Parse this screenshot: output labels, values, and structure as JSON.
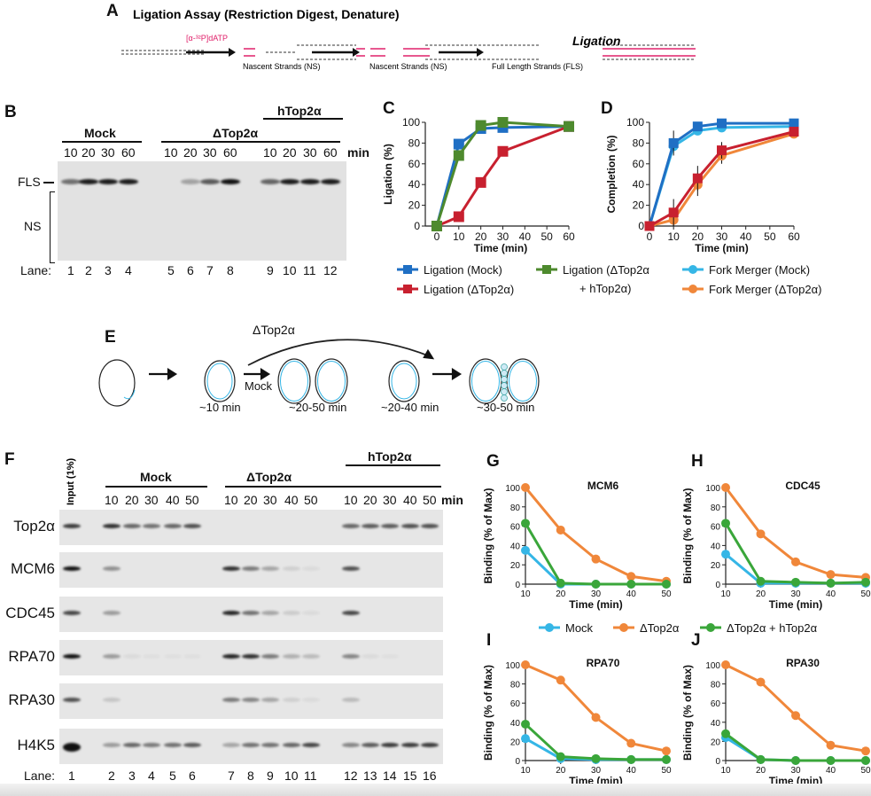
{
  "panelA": {
    "letter": "A",
    "title": "Ligation Assay (Restriction Digest, Denature)",
    "label_dATP": "[α-³²P]dATP",
    "ns1": "Nascent Strands (NS)",
    "ns2": "Nascent Strands (NS)",
    "ligation": "Ligation",
    "fls": "Full Length Strands (FLS)"
  },
  "panelB": {
    "letter": "B",
    "mock": "Mock",
    "dtop": "ΔTop2α",
    "htop": "hTop2α",
    "min": "min",
    "times": [
      "10",
      "20",
      "30",
      "60",
      "10",
      "20",
      "30",
      "60",
      "10",
      "20",
      "30",
      "60"
    ],
    "lanes": [
      "1",
      "2",
      "3",
      "4",
      "5",
      "6",
      "7",
      "8",
      "9",
      "10",
      "11",
      "12"
    ],
    "lane_label": "Lane:",
    "fls": "FLS",
    "ns": "NS",
    "fls_intensity": [
      0.55,
      0.95,
      0.95,
      0.95,
      0,
      0.3,
      0.65,
      1,
      0.6,
      0.95,
      0.95,
      0.95
    ]
  },
  "panelE": {
    "letter": "E",
    "dtop": "ΔTop2α",
    "mock": "Mock",
    "t1": "~10 min",
    "t2": "~20-50 min",
    "t3": "~20-40 min",
    "t4": "~30-50 min"
  },
  "panelF": {
    "letter": "F",
    "input": "Input (1%)",
    "mock": "Mock",
    "dtop": "ΔTop2α",
    "htop": "hTop2α",
    "min": "min",
    "times": [
      "10",
      "20",
      "30",
      "40",
      "50",
      "10",
      "20",
      "30",
      "40",
      "50",
      "10",
      "20",
      "30",
      "40",
      "50"
    ],
    "lanes": [
      "1",
      "2",
      "3",
      "4",
      "5",
      "6",
      "7",
      "8",
      "9",
      "10",
      "11",
      "12",
      "13",
      "14",
      "15",
      "16"
    ],
    "lane_label": "Lane:",
    "rows": [
      {
        "name": "Top2α",
        "intensity": [
          0.8,
          0.85,
          0.6,
          0.55,
          0.6,
          0.7,
          0,
          0,
          0,
          0,
          0,
          0.6,
          0.65,
          0.65,
          0.7,
          0.7
        ]
      },
      {
        "name": "MCM6",
        "intensity": [
          1,
          0.4,
          0,
          0,
          0,
          0,
          0.85,
          0.5,
          0.3,
          0.1,
          0.05,
          0.7,
          0,
          0,
          0,
          0
        ]
      },
      {
        "name": "CDC45",
        "intensity": [
          0.75,
          0.35,
          0,
          0,
          0,
          0,
          0.9,
          0.55,
          0.3,
          0.12,
          0.05,
          0.75,
          0,
          0,
          0,
          0
        ]
      },
      {
        "name": "RPA70",
        "intensity": [
          1,
          0.35,
          0.05,
          0.03,
          0.03,
          0.03,
          0.9,
          0.85,
          0.5,
          0.25,
          0.2,
          0.45,
          0.05,
          0.03,
          0,
          0
        ]
      },
      {
        "name": "RPA30",
        "intensity": [
          0.7,
          0.15,
          0,
          0,
          0,
          0,
          0.5,
          0.45,
          0.3,
          0.1,
          0.05,
          0.2,
          0,
          0,
          0,
          0
        ]
      },
      {
        "name": "H4K5",
        "intensity": [
          1,
          0.35,
          0.6,
          0.5,
          0.55,
          0.65,
          0.3,
          0.55,
          0.55,
          0.6,
          0.75,
          0.45,
          0.65,
          0.8,
          0.8,
          0.8
        ]
      }
    ]
  },
  "legendCD": [
    "Ligation (Mock)",
    "Ligation (ΔTop2α)",
    "Ligation (ΔTop2α",
    "+ hTop2α)",
    "Fork Merger (Mock)",
    "Fork Merger (ΔTop2α)"
  ],
  "legendGJ": [
    "Mock",
    "ΔTop2α",
    "ΔTop2α + hTop2α"
  ],
  "chart_data": [
    {
      "letter": "C",
      "type": "line",
      "title": "",
      "xlabel": "Time (min)",
      "ylabel": "Ligation (%)",
      "xlim": [
        -2,
        60
      ],
      "ylim": [
        0,
        100
      ],
      "xticks": [
        0,
        10,
        20,
        30,
        40,
        50,
        60
      ],
      "yticks": [
        0,
        20,
        40,
        60,
        80,
        100
      ],
      "x": [
        0,
        10,
        20,
        30,
        60
      ],
      "marker": "square",
      "series": [
        {
          "name": "Ligation (Mock)",
          "color": "#1f6fc4",
          "values": [
            0,
            79,
            94,
            95,
            96
          ]
        },
        {
          "name": "Ligation (ΔTop2α)",
          "color": "#c8202f",
          "values": [
            0,
            9,
            42,
            72,
            96
          ]
        },
        {
          "name": "Ligation (ΔTop2α + hTop2α)",
          "color": "#4e8a2e",
          "values": [
            0,
            68,
            97,
            100,
            96
          ]
        }
      ]
    },
    {
      "letter": "D",
      "type": "line",
      "title": "",
      "xlabel": "Time (min)",
      "ylabel": "Completion (%)",
      "xlim": [
        0,
        60
      ],
      "ylim": [
        0,
        100
      ],
      "xticks": [
        0,
        10,
        20,
        30,
        40,
        50,
        60
      ],
      "yticks": [
        0,
        20,
        40,
        60,
        80,
        100
      ],
      "x": [
        0,
        10,
        20,
        30,
        60
      ],
      "series": [
        {
          "name": "Fork Merger (Mock)",
          "color": "#35b6e6",
          "marker": "circle",
          "values": [
            0,
            77,
            92,
            95,
            96
          ]
        },
        {
          "name": "Fork Merger (ΔTop2α)",
          "color": "#f0873a",
          "marker": "circle",
          "values": [
            0,
            6,
            40,
            68,
            89
          ],
          "err": [
            0,
            6,
            11,
            8,
            3
          ]
        },
        {
          "name": "Ligation (Mock)",
          "color": "#1f6fc4",
          "marker": "square",
          "values": [
            0,
            80,
            96,
            99,
            99
          ],
          "err": [
            0,
            12,
            3,
            1,
            1
          ]
        },
        {
          "name": "Ligation (ΔTop2α)",
          "color": "#c8202f",
          "marker": "square",
          "values": [
            0,
            13,
            46,
            73,
            91
          ],
          "err": [
            0,
            13,
            12,
            8,
            3
          ]
        }
      ]
    },
    {
      "letter": "G",
      "type": "line",
      "title": "MCM6",
      "xlabel": "Time (min)",
      "ylabel": "Binding (% of Max)",
      "xlim": [
        10,
        50
      ],
      "ylim": [
        0,
        100
      ],
      "xticks": [
        10,
        20,
        30,
        40,
        50
      ],
      "yticks": [
        0,
        20,
        40,
        60,
        80,
        100
      ],
      "x": [
        10,
        20,
        30,
        40,
        50
      ],
      "marker": "circle",
      "series": [
        {
          "name": "Mock",
          "color": "#35b6e6",
          "values": [
            35,
            0,
            0,
            0,
            0
          ]
        },
        {
          "name": "ΔTop2α",
          "color": "#f0873a",
          "values": [
            100,
            56,
            26,
            8,
            3
          ]
        },
        {
          "name": "ΔTop2α + hTop2α",
          "color": "#3aa63a",
          "values": [
            63,
            1,
            0,
            0,
            0
          ]
        }
      ]
    },
    {
      "letter": "H",
      "type": "line",
      "title": "CDC45",
      "xlabel": "Time (min)",
      "ylabel": "Binding (% of Max)",
      "xlim": [
        10,
        50
      ],
      "ylim": [
        0,
        100
      ],
      "xticks": [
        10,
        20,
        30,
        40,
        50
      ],
      "yticks": [
        0,
        20,
        40,
        60,
        80,
        100
      ],
      "x": [
        10,
        20,
        30,
        40,
        50
      ],
      "marker": "circle",
      "series": [
        {
          "name": "Mock",
          "color": "#35b6e6",
          "values": [
            31,
            1,
            1,
            1,
            1
          ]
        },
        {
          "name": "ΔTop2α",
          "color": "#f0873a",
          "values": [
            100,
            52,
            23,
            10,
            7
          ]
        },
        {
          "name": "ΔTop2α + hTop2α",
          "color": "#3aa63a",
          "values": [
            63,
            3,
            2,
            1,
            2
          ]
        }
      ]
    },
    {
      "letter": "I",
      "type": "line",
      "title": "RPA70",
      "xlabel": "Time (min)",
      "ylabel": "Binding (% of Max)",
      "xlim": [
        10,
        50
      ],
      "ylim": [
        0,
        100
      ],
      "xticks": [
        10,
        20,
        30,
        40,
        50
      ],
      "yticks": [
        0,
        20,
        40,
        60,
        80,
        100
      ],
      "x": [
        10,
        20,
        30,
        40,
        50
      ],
      "marker": "circle",
      "series": [
        {
          "name": "Mock",
          "color": "#35b6e6",
          "values": [
            23,
            2,
            1,
            1,
            1
          ]
        },
        {
          "name": "ΔTop2α",
          "color": "#f0873a",
          "values": [
            100,
            84,
            45,
            18,
            10
          ]
        },
        {
          "name": "ΔTop2α + hTop2α",
          "color": "#3aa63a",
          "values": [
            38,
            4,
            2,
            1,
            1
          ]
        }
      ]
    },
    {
      "letter": "J",
      "type": "line",
      "title": "RPA30",
      "xlabel": "Time (min)",
      "ylabel": "Binding (% of Max)",
      "xlim": [
        10,
        50
      ],
      "ylim": [
        0,
        100
      ],
      "xticks": [
        10,
        20,
        30,
        40,
        50
      ],
      "yticks": [
        0,
        20,
        40,
        60,
        80,
        100
      ],
      "x": [
        10,
        20,
        30,
        40,
        50
      ],
      "marker": "circle",
      "series": [
        {
          "name": "Mock",
          "color": "#35b6e6",
          "values": [
            24,
            1,
            0,
            0,
            0
          ]
        },
        {
          "name": "ΔTop2α",
          "color": "#f0873a",
          "values": [
            100,
            82,
            47,
            16,
            10
          ]
        },
        {
          "name": "ΔTop2α + hTop2α",
          "color": "#3aa63a",
          "values": [
            28,
            1,
            0,
            0,
            0
          ]
        }
      ]
    }
  ]
}
